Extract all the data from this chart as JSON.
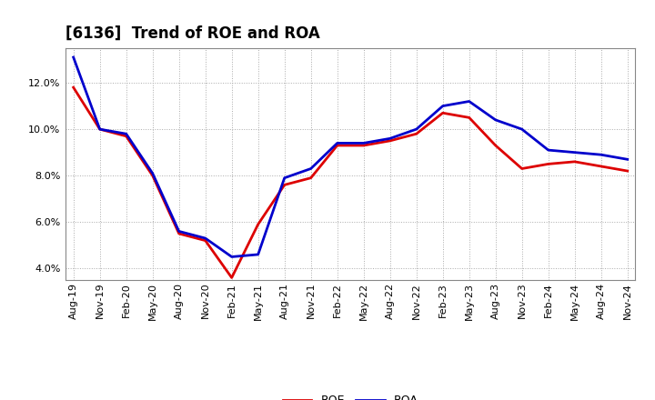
{
  "title": "[6136]  Trend of ROE and ROA",
  "x_labels": [
    "Aug-19",
    "Nov-19",
    "Feb-20",
    "May-20",
    "Aug-20",
    "Nov-20",
    "Feb-21",
    "May-21",
    "Aug-21",
    "Nov-21",
    "Feb-22",
    "May-22",
    "Aug-22",
    "Nov-22",
    "Feb-23",
    "May-23",
    "Aug-23",
    "Nov-23",
    "Feb-24",
    "May-24",
    "Aug-24",
    "Nov-24"
  ],
  "roe": [
    11.8,
    10.0,
    9.7,
    8.0,
    5.5,
    5.2,
    3.6,
    5.9,
    7.6,
    7.9,
    9.3,
    9.3,
    9.5,
    9.8,
    10.7,
    10.5,
    9.3,
    8.3,
    8.5,
    8.6,
    8.4,
    8.2
  ],
  "roa": [
    13.1,
    10.0,
    9.8,
    8.1,
    5.6,
    5.3,
    4.5,
    4.6,
    7.9,
    8.3,
    9.4,
    9.4,
    9.6,
    10.0,
    11.0,
    11.2,
    10.4,
    10.0,
    9.1,
    9.0,
    8.9,
    8.7
  ],
  "roe_color": "#dd0000",
  "roa_color": "#0000cc",
  "ylim_min": 3.5,
  "ylim_max": 13.5,
  "yticks": [
    4.0,
    6.0,
    8.0,
    10.0,
    12.0
  ],
  "background_color": "#ffffff",
  "grid_color": "#aaaaaa",
  "linewidth": 2.0,
  "title_fontsize": 12,
  "tick_fontsize": 8,
  "legend_fontsize": 9
}
